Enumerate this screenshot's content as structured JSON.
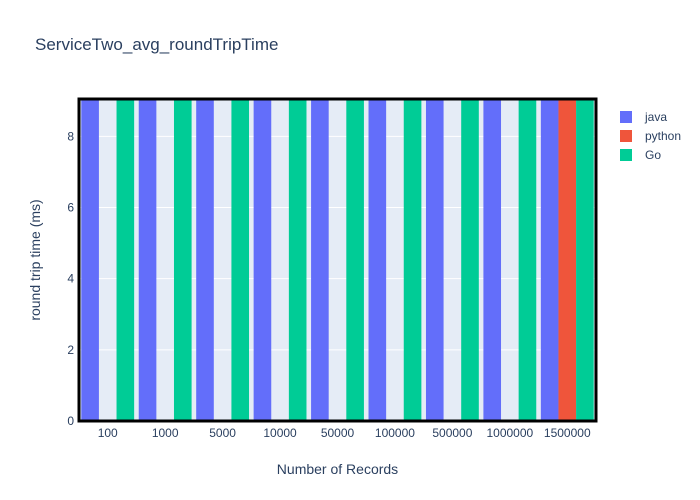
{
  "chart_data": {
    "type": "bar",
    "title": "ServiceTwo_avg_roundTripTime",
    "xlabel": "Number of Records",
    "ylabel": "round trip time (ms)",
    "categories": [
      "100",
      "1000",
      "5000",
      "10000",
      "50000",
      "100000",
      "500000",
      "1000000",
      "1500000"
    ],
    "series": [
      {
        "name": "java",
        "color": "#636efa",
        "values": [
          9.2,
          9.2,
          9.2,
          9.2,
          9.2,
          9.2,
          9.2,
          9.2,
          9.2
        ]
      },
      {
        "name": "python",
        "color": "#ef553b",
        "values": [
          null,
          null,
          null,
          null,
          null,
          null,
          null,
          null,
          9.2
        ]
      },
      {
        "name": "Go",
        "color": "#00cc96",
        "values": [
          9.2,
          9.2,
          9.2,
          9.2,
          9.2,
          9.2,
          9.2,
          9.2,
          9.2
        ]
      }
    ],
    "ylim": [
      0,
      9.05
    ],
    "yticks": [
      0,
      2,
      4,
      6,
      8
    ],
    "grid": true,
    "legend_position": "right",
    "plot_bg": "#e5ecf6",
    "frame_color": "#000000"
  }
}
